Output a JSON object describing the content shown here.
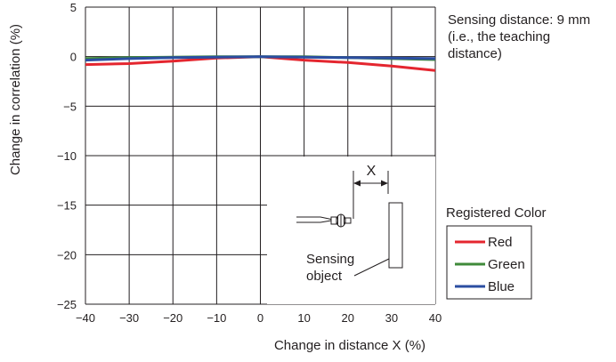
{
  "chart_data": {
    "type": "line",
    "title": "",
    "xlabel": "Change in distance X (%)",
    "ylabel": "Change in correlation (%)",
    "xlim": [
      -40,
      40
    ],
    "ylim": [
      -25,
      5
    ],
    "xticks": [
      -40,
      -30,
      -20,
      -10,
      0,
      10,
      20,
      30,
      40
    ],
    "yticks": [
      5,
      0,
      -5,
      -10,
      -15,
      -20,
      -25
    ],
    "xtick_labels": [
      "−40",
      "−30",
      "−20",
      "−10",
      "0",
      "10",
      "20",
      "30",
      "40"
    ],
    "ytick_labels": [
      "5",
      "0",
      "−5",
      "−10",
      "−15",
      "−20",
      "−25"
    ],
    "grid": true,
    "x": [
      -40,
      -30,
      -20,
      -10,
      0,
      10,
      20,
      30,
      40
    ],
    "series": [
      {
        "name": "Red",
        "color": "#e4262f",
        "values": [
          -0.8,
          -0.7,
          -0.45,
          -0.15,
          0,
          -0.35,
          -0.6,
          -0.95,
          -1.4
        ]
      },
      {
        "name": "Green",
        "color": "#3f8a3a",
        "values": [
          -0.2,
          -0.1,
          -0.05,
          0,
          0,
          0,
          -0.1,
          -0.2,
          -0.3
        ]
      },
      {
        "name": "Blue",
        "color": "#2b4ea1",
        "values": [
          -0.35,
          -0.2,
          -0.1,
          -0.05,
          0,
          -0.05,
          -0.1,
          -0.15,
          -0.2
        ]
      }
    ],
    "annotation": {
      "line1": "Sensing distance: 9 mm",
      "line2": "(i.e., the teaching",
      "line3": "distance)"
    },
    "legend": {
      "title": "Registered Color",
      "placement": "right"
    },
    "inset": {
      "x_label": "X",
      "object_line1": "Sensing",
      "object_line2": "object"
    }
  }
}
